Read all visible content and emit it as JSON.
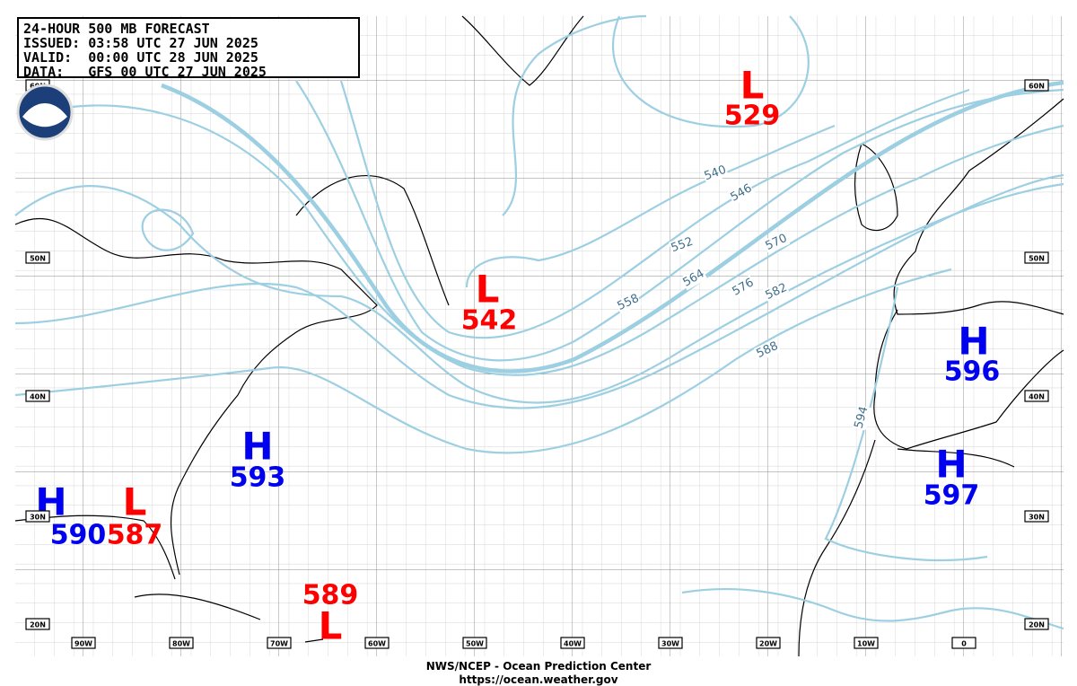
{
  "header": {
    "lines": [
      "24-HOUR 500 MB FORECAST",
      "ISSUED: 03:58 UTC 27 JUN 2025",
      "VALID:  00:00 UTC 28 JUN 2025",
      "DATA:   GFS 00 UTC 27 JUN 2025"
    ]
  },
  "centers": [
    {
      "type": "L",
      "value": 529
    },
    {
      "type": "L",
      "value": 542
    },
    {
      "type": "H",
      "value": 596
    },
    {
      "type": "H",
      "value": 597
    },
    {
      "type": "H",
      "value": 593
    },
    {
      "type": "H",
      "value": 590
    },
    {
      "type": "L",
      "value": 587
    },
    {
      "type": "L",
      "value": 589
    }
  ],
  "contour_labels": [
    540,
    546,
    552,
    558,
    564,
    570,
    576,
    582,
    588,
    594
  ],
  "longitudes": [
    "90W",
    "80W",
    "70W",
    "60W",
    "50W",
    "40W",
    "30W",
    "20W",
    "10W",
    "0"
  ],
  "latitudes": [
    "60N",
    "50N",
    "40N",
    "30N",
    "20N"
  ],
  "footer": {
    "line1": "NWS/NCEP - Ocean Prediction Center",
    "line2": "https://ocean.weather.gov"
  }
}
